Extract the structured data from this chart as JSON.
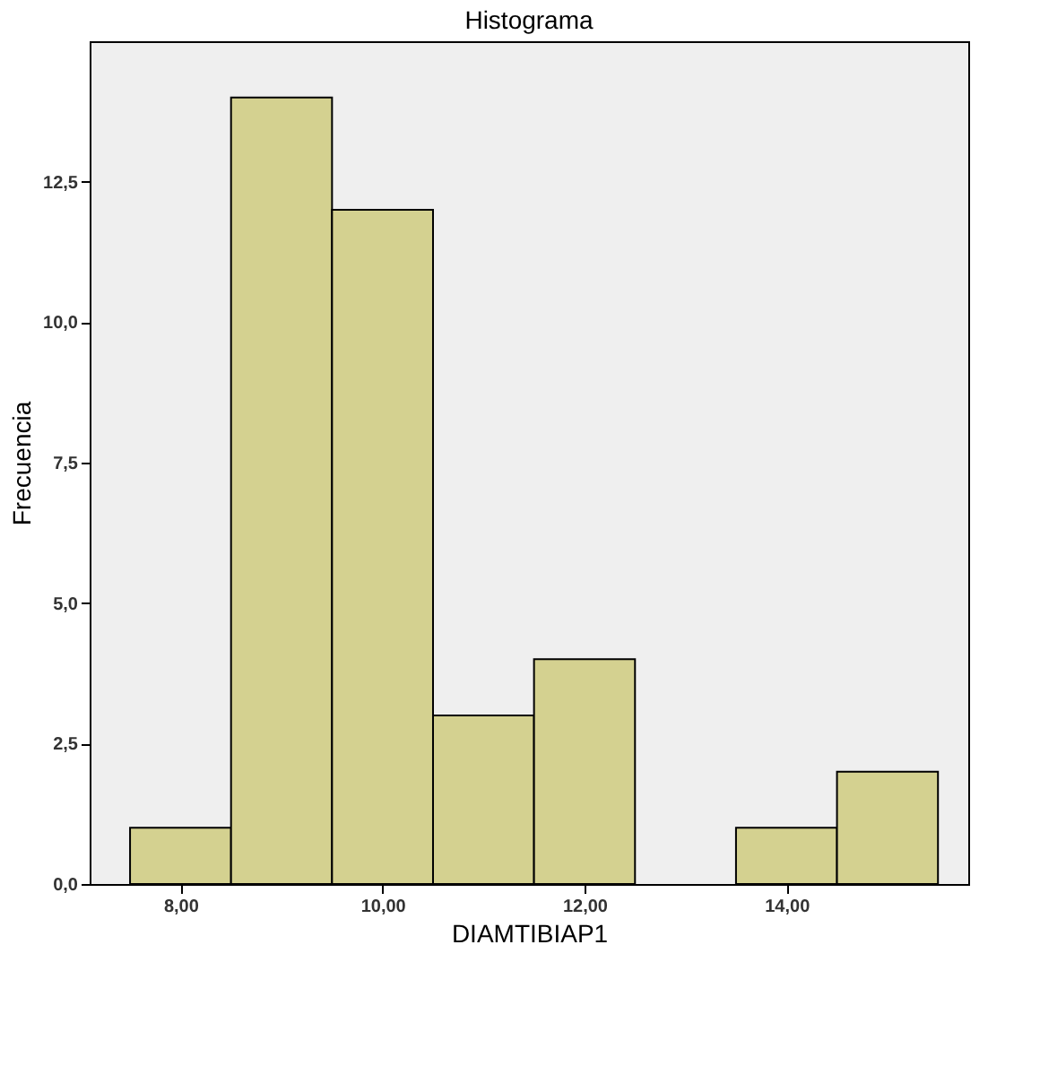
{
  "chart_data": {
    "type": "histogram",
    "title": "Histograma",
    "xlabel": "DIAMTIBIAP1",
    "ylabel": "Frecuencia",
    "bins": [
      7.5,
      8.5,
      9.5,
      10.5,
      11.5,
      12.5,
      13.5,
      14.5,
      15.5
    ],
    "values": [
      1,
      14,
      12,
      3,
      4,
      0,
      1,
      2
    ],
    "color": "#d4d190",
    "xlim": [
      7.1,
      15.8
    ],
    "ylim": [
      0,
      15
    ],
    "xticks": [
      {
        "value": 8,
        "label": "8,00"
      },
      {
        "value": 10,
        "label": "10,00"
      },
      {
        "value": 12,
        "label": "12,00"
      },
      {
        "value": 14,
        "label": "14,00"
      }
    ],
    "yticks": [
      {
        "value": 0,
        "label": "0,0"
      },
      {
        "value": 2.5,
        "label": "2,5"
      },
      {
        "value": 5,
        "label": "5,0"
      },
      {
        "value": 7.5,
        "label": "7,5"
      },
      {
        "value": 10,
        "label": "10,0"
      },
      {
        "value": 12.5,
        "label": "12,5"
      }
    ],
    "grid": false
  }
}
